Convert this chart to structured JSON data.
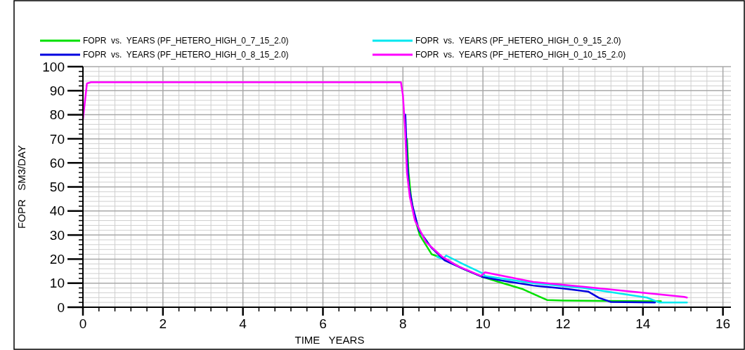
{
  "chart_data": {
    "type": "line",
    "xlabel": "TIME   YEARS",
    "ylabel": "FOPR   SM3/DAY",
    "xlim": [
      0,
      16.2
    ],
    "xticks": [
      0,
      2,
      4,
      6,
      8,
      10,
      12,
      14,
      16
    ],
    "ylim": [
      0,
      100
    ],
    "yticks": [
      0,
      10,
      20,
      30,
      40,
      50,
      60,
      70,
      80,
      90,
      100
    ],
    "grid": true,
    "legend": "top",
    "marker": "none",
    "line_style": "solid",
    "series": [
      {
        "name": "FOPR  vs.  YEARS (PF_HETERO_HIGH_0_7_15_2.0)",
        "color": "#00e000",
        "x": [
          8.1,
          8.14,
          8.2,
          8.28,
          8.42,
          8.72,
          9.05,
          9.5,
          10.0,
          10.5,
          11.0,
          11.4,
          11.6,
          12.0,
          13.0,
          14.45
        ],
        "values": [
          70,
          56,
          46,
          38,
          30,
          22,
          20,
          16,
          12.5,
          10,
          7.5,
          4.5,
          3,
          2.8,
          2.6,
          2.5
        ]
      },
      {
        "name": "FOPR  vs.  YEARS (PF_HETERO_HIGH_0_9_15_2.0)",
        "color": "#00e8f0",
        "x": [
          8.85,
          9.0,
          9.08,
          9.5,
          10.0,
          10.05,
          11.26,
          12.5,
          14.1,
          14.4,
          15.1
        ],
        "values": [
          21,
          20,
          21.5,
          18,
          14,
          13,
          10,
          8,
          4,
          2,
          2
        ]
      },
      {
        "name": "FOPR  vs.  YEARS (PF_HETERO_HIGH_0_8_15_2.0)",
        "color": "#0000e0",
        "x": [
          8.06,
          8.1,
          8.15,
          8.24,
          8.4,
          8.7,
          9.04,
          9.5,
          10.0,
          10.5,
          11.26,
          12.0,
          12.63,
          12.9,
          13.2,
          14.3
        ],
        "values": [
          80,
          62,
          50,
          42,
          32,
          25,
          19.5,
          16,
          12.5,
          11,
          9,
          7.8,
          6.5,
          3.9,
          2.2,
          2
        ]
      },
      {
        "name": "FOPR  vs.  YEARS (PF_HETERO_HIGH_0_10_15_2.0)",
        "color": "#ff00ff",
        "x": [
          0,
          0.1,
          0.2,
          7.95,
          8.0,
          8.05,
          8.1,
          8.17,
          8.3,
          8.58,
          8.98,
          9.38,
          9.95,
          10.05,
          11.26,
          12.5,
          15.03,
          15.1
        ],
        "values": [
          78,
          93,
          93.5,
          93.5,
          88,
          75,
          56,
          46,
          36,
          27,
          21,
          17,
          13,
          14.5,
          10.5,
          8.5,
          4.3,
          4
        ]
      }
    ]
  }
}
